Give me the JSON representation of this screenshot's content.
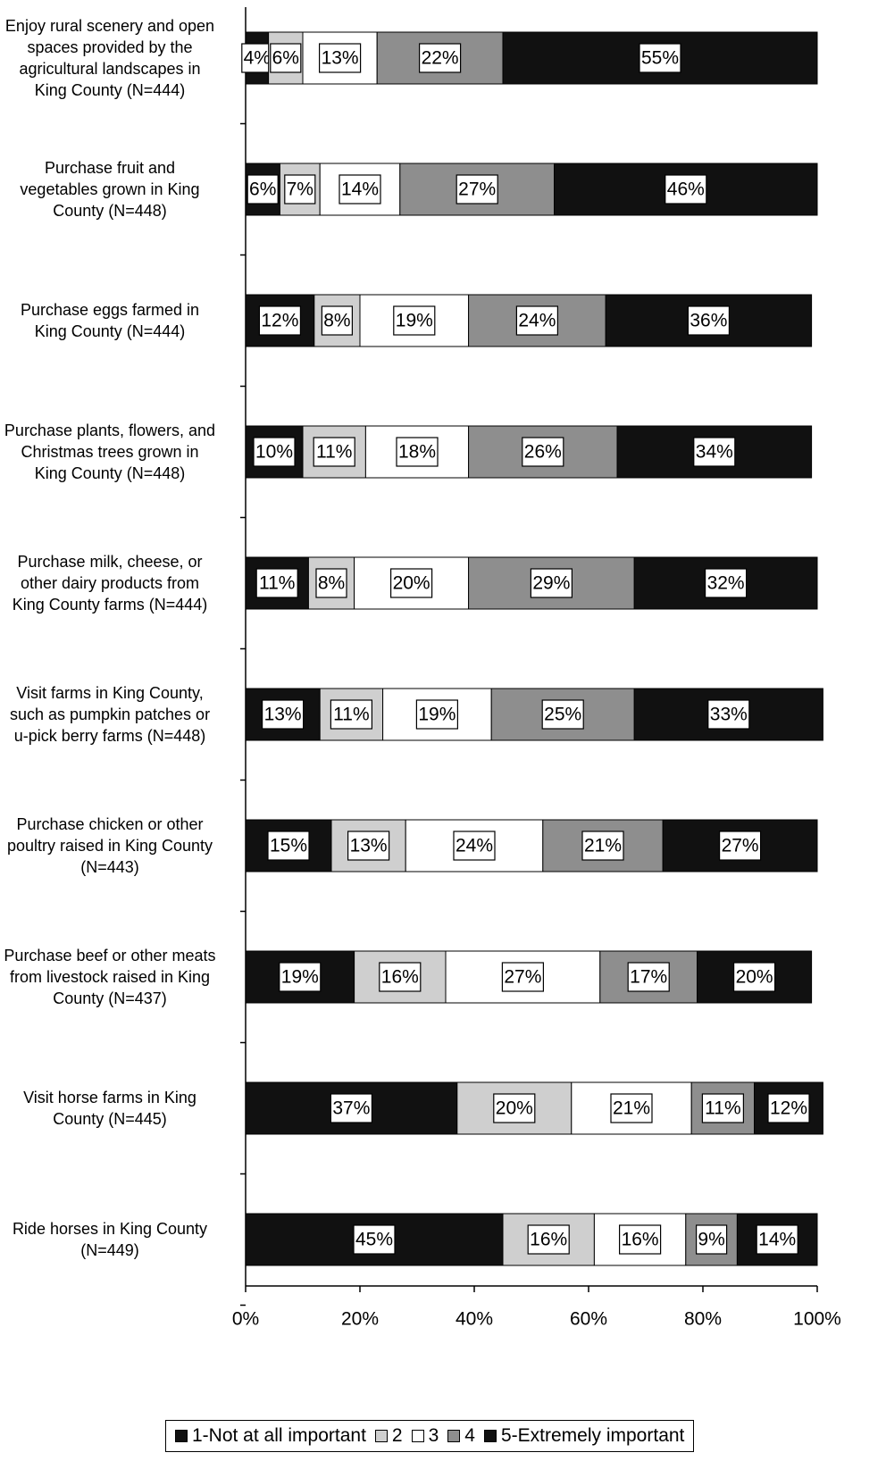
{
  "chart_data": {
    "type": "stacked-bar-horizontal",
    "categories": [
      "Enjoy rural scenery and open spaces provided by the agricultural landscapes in King County (N=444)",
      "Purchase fruit and vegetables grown in King County (N=448)",
      "Purchase eggs farmed in King County (N=444)",
      "Purchase plants, flowers, and Christmas trees grown in King County (N=448)",
      "Purchase milk, cheese, or other dairy products from King County farms (N=444)",
      "Visit farms in King County, such as pumpkin patches or u-pick berry farms (N=448)",
      "Purchase chicken or other poultry raised in King County (N=443)",
      "Purchase beef or other meats from livestock raised in King County (N=437)",
      "Visit horse farms in King County (N=445)",
      "Ride horses in King County (N=449)"
    ],
    "series": [
      {
        "name": "1-Not at all important",
        "color": "#111111",
        "values": [
          4,
          6,
          12,
          10,
          11,
          13,
          15,
          19,
          37,
          45
        ],
        "value_labels": [
          "4%",
          "6%",
          "12%",
          "10%",
          "11%",
          "13%",
          "15%",
          "19%",
          "37%",
          "45%"
        ]
      },
      {
        "name": "2",
        "color": "#cfcfcf",
        "values": [
          6,
          7,
          8,
          11,
          8,
          11,
          13,
          16,
          20,
          16
        ],
        "value_labels": [
          "6%",
          "7%",
          "8%",
          "11%",
          "8%",
          "11%",
          "13%",
          "16%",
          "20%",
          "16%"
        ]
      },
      {
        "name": "3",
        "color": "#ffffff",
        "values": [
          13,
          14,
          19,
          18,
          20,
          19,
          24,
          27,
          21,
          16
        ],
        "value_labels": [
          "13%",
          "14%",
          "19%",
          "18%",
          "20%",
          "19%",
          "24%",
          "27%",
          "21%",
          "16%"
        ]
      },
      {
        "name": "4",
        "color": "#8e8e8e",
        "values": [
          22,
          27,
          24,
          26,
          29,
          25,
          21,
          17,
          11,
          9
        ],
        "value_labels": [
          "22%",
          "27%",
          "24%",
          "26%",
          "29%",
          "25%",
          "21%",
          "17%",
          "11%",
          "9%"
        ]
      },
      {
        "name": "5-Extremely important",
        "color": "#111111",
        "values": [
          55,
          46,
          36,
          34,
          32,
          33,
          27,
          20,
          12,
          14
        ],
        "value_labels": [
          "55%",
          "46%",
          "36%",
          "34%",
          "32%",
          "33%",
          "27%",
          "20%",
          "12%",
          "14%"
        ]
      }
    ],
    "xlim": [
      0,
      100
    ],
    "xticks": [
      {
        "value": 0,
        "label": "0%"
      },
      {
        "value": 20,
        "label": "20%"
      },
      {
        "value": 40,
        "label": "40%"
      },
      {
        "value": 60,
        "label": "60%"
      },
      {
        "value": 80,
        "label": "80%"
      },
      {
        "value": 100,
        "label": "100%"
      }
    ],
    "legend": "bottom"
  }
}
